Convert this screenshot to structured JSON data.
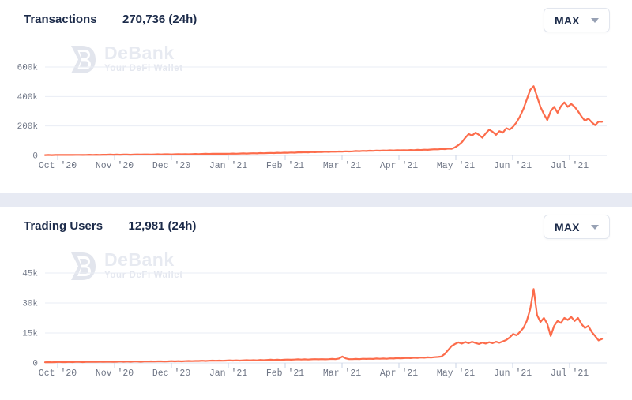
{
  "watermark": {
    "name": "DeBank",
    "tagline": "Your DeFi Wallet"
  },
  "charts": [
    {
      "title": "Transactions",
      "value_24h": "270,736 (24h)",
      "range_selected": "MAX"
    },
    {
      "title": "Trading Users",
      "value_24h": "12,981 (24h)",
      "range_selected": "MAX"
    }
  ],
  "colors": {
    "line": "#fc6c4b",
    "heading": "#1c2b4a",
    "axis_text": "#6e7585",
    "grid": "#eaedf4",
    "zero_line": "#dde3ef",
    "tick": "#c9d3e6",
    "divider": "#e7eaf3"
  },
  "chart_data": [
    {
      "type": "line",
      "title": "Transactions",
      "subtitle_value": "270,736 (24h)",
      "range": "MAX",
      "values_unit": "thousands",
      "x_tick_labels": [
        "Oct '20",
        "Nov '20",
        "Dec '20",
        "Jan '21",
        "Feb '21",
        "Mar '21",
        "Apr '21",
        "May '21",
        "Jun '21",
        "Jul '21"
      ],
      "y_ticks": [
        {
          "label": "600k",
          "value_k": 600
        },
        {
          "label": "400k",
          "value_k": 400
        },
        {
          "label": "200k",
          "value_k": 200
        },
        {
          "label": "0",
          "value_k": 0
        }
      ],
      "y_axis_max_k": 600,
      "ylim_k": [
        0,
        600
      ],
      "legend": "none",
      "grid": "horizontal-only",
      "values_k": [
        2,
        3,
        2,
        3,
        4,
        3,
        3,
        4,
        3,
        4,
        4,
        3,
        4,
        5,
        4,
        5,
        4,
        5,
        5,
        6,
        5,
        6,
        5,
        6,
        6,
        5,
        6,
        7,
        6,
        7,
        7,
        6,
        7,
        8,
        7,
        8,
        8,
        7,
        8,
        9,
        8,
        9,
        8,
        9,
        10,
        9,
        10,
        11,
        10,
        11,
        12,
        11,
        12,
        11,
        12,
        13,
        12,
        13,
        14,
        13,
        14,
        15,
        14,
        16,
        15,
        16,
        17,
        16,
        18,
        17,
        19,
        18,
        20,
        19,
        21,
        21,
        22,
        21,
        23,
        22,
        24,
        23,
        25,
        24,
        26,
        25,
        27,
        26,
        28,
        27,
        28,
        30,
        29,
        31,
        30,
        32,
        31,
        33,
        32,
        34,
        33,
        35,
        34,
        36,
        35,
        36,
        35,
        37,
        36,
        38,
        37,
        39,
        38,
        40,
        42,
        41,
        44,
        43,
        46,
        45,
        55,
        70,
        90,
        120,
        145,
        135,
        155,
        140,
        120,
        150,
        175,
        160,
        140,
        165,
        155,
        185,
        175,
        195,
        225,
        265,
        315,
        380,
        445,
        470,
        400,
        330,
        280,
        240,
        300,
        330,
        290,
        335,
        360,
        330,
        350,
        330,
        300,
        265,
        235,
        250,
        225,
        205,
        230,
        228
      ]
    },
    {
      "type": "line",
      "title": "Trading Users",
      "subtitle_value": "12,981 (24h)",
      "range": "MAX",
      "values_unit": "thousands",
      "x_tick_labels": [
        "Oct '20",
        "Nov '20",
        "Dec '20",
        "Jan '21",
        "Feb '21",
        "Mar '21",
        "Apr '21",
        "May '21",
        "Jun '21",
        "Jul '21"
      ],
      "y_ticks": [
        {
          "label": "45k",
          "value_k": 45
        },
        {
          "label": "30k",
          "value_k": 30
        },
        {
          "label": "15k",
          "value_k": 15
        },
        {
          "label": "0",
          "value_k": 0
        }
      ],
      "y_axis_max_k": 45,
      "ylim_k": [
        0,
        45
      ],
      "legend": "none",
      "grid": "horizontal-only",
      "values_k": [
        0.3,
        0.4,
        0.3,
        0.4,
        0.5,
        0.4,
        0.4,
        0.5,
        0.4,
        0.5,
        0.5,
        0.4,
        0.5,
        0.6,
        0.5,
        0.5,
        0.6,
        0.5,
        0.6,
        0.6,
        0.5,
        0.6,
        0.7,
        0.6,
        0.7,
        0.6,
        0.7,
        0.7,
        0.6,
        0.7,
        0.7,
        0.8,
        0.7,
        0.8,
        0.8,
        0.7,
        0.8,
        0.9,
        0.8,
        0.9,
        0.8,
        0.9,
        1.0,
        0.9,
        1.0,
        1.0,
        1.1,
        1.0,
        1.1,
        1.2,
        1.1,
        1.2,
        1.1,
        1.2,
        1.3,
        1.2,
        1.3,
        1.2,
        1.3,
        1.4,
        1.3,
        1.4,
        1.3,
        1.5,
        1.4,
        1.5,
        1.6,
        1.5,
        1.6,
        1.5,
        1.6,
        1.7,
        1.6,
        1.7,
        1.8,
        1.7,
        1.8,
        1.7,
        1.8,
        1.9,
        1.8,
        1.9,
        1.8,
        1.9,
        2.0,
        1.9,
        2.2,
        3.2,
        2.3,
        1.9,
        1.9,
        2.0,
        1.9,
        2.1,
        2.0,
        2.1,
        2.0,
        2.2,
        2.1,
        2.2,
        2.1,
        2.3,
        2.2,
        2.4,
        2.3,
        2.4,
        2.5,
        2.4,
        2.6,
        2.5,
        2.7,
        2.6,
        2.8,
        2.7,
        2.9,
        3.0,
        3.2,
        4.5,
        6.5,
        8.5,
        9.5,
        10.3,
        9.7,
        10.5,
        9.9,
        10.6,
        10.0,
        9.5,
        10.2,
        9.7,
        10.4,
        9.9,
        10.6,
        10.1,
        10.8,
        11.5,
        12.8,
        14.5,
        13.8,
        15.5,
        17.5,
        21.0,
        27.0,
        37.0,
        24.0,
        20.5,
        22.5,
        19.5,
        13.5,
        18.5,
        21.0,
        20.0,
        22.5,
        21.5,
        23.0,
        21.0,
        22.5,
        19.5,
        17.5,
        18.5,
        15.5,
        13.5,
        11.3,
        12.0
      ]
    }
  ]
}
